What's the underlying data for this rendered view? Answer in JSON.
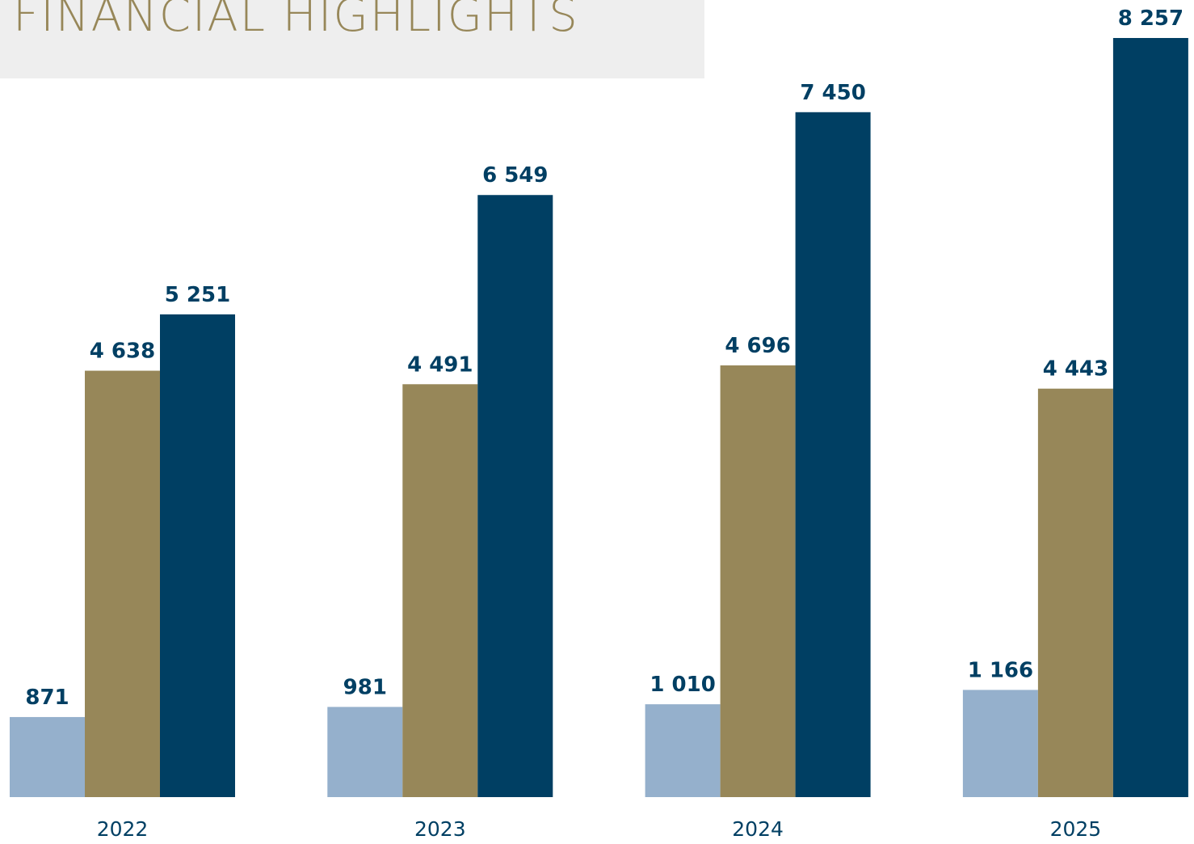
{
  "chart_data": {
    "type": "bar",
    "title": "FINANCIAL HIGHLIGHTS",
    "categories": [
      "2022",
      "2023",
      "2024",
      "2025"
    ],
    "series": [
      {
        "color": "#95b0cc",
        "values": [
          871,
          981,
          1010,
          1166
        ],
        "value_labels": [
          "871",
          "981",
          "1 010",
          "1 166"
        ]
      },
      {
        "color": "#978759",
        "values": [
          4638,
          4491,
          4696,
          4443
        ],
        "value_labels": [
          "4 638",
          "4 491",
          "4 696",
          "4 443"
        ]
      },
      {
        "color": "#003f63",
        "values": [
          5251,
          6549,
          7450,
          8257
        ],
        "value_labels": [
          "5 251",
          "6 549",
          "7 450",
          "8 257"
        ]
      }
    ]
  }
}
